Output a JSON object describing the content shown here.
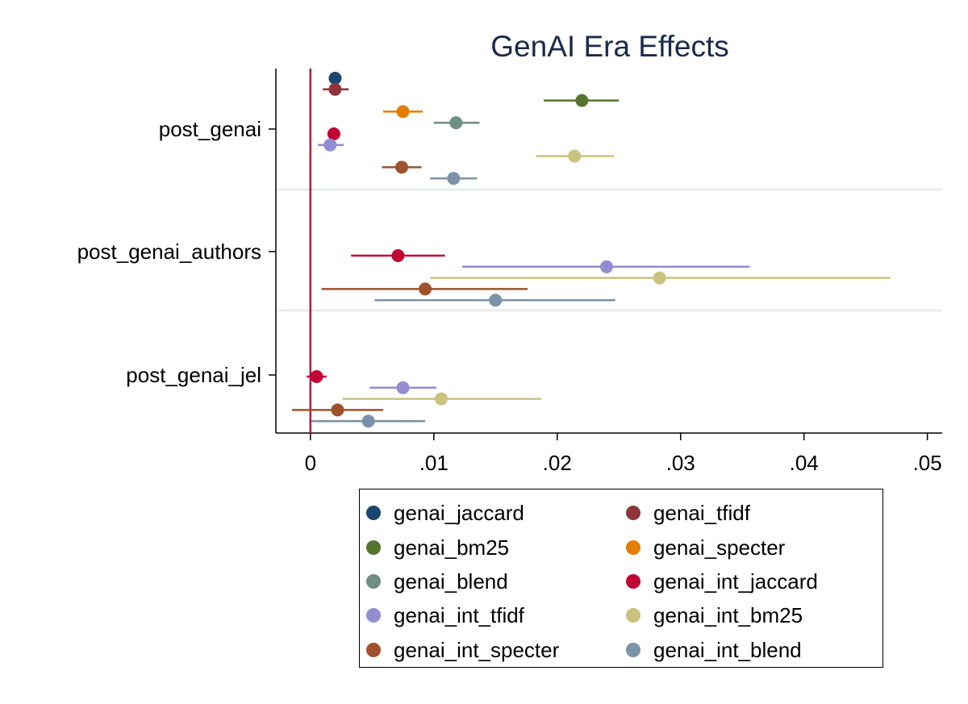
{
  "chart_data": {
    "type": "coefficient_plot",
    "title": "GenAI Era Effects",
    "xlabel": "",
    "ylabel": "",
    "xlim": [
      -0.0028,
      0.0512
    ],
    "x_ticks": [
      0,
      0.01,
      0.02,
      0.03,
      0.04,
      0.05
    ],
    "x_tick_labels": [
      "0",
      ".01",
      ".02",
      ".03",
      ".04",
      ".05"
    ],
    "reference_line_x": 0,
    "reference_line_color": "#c0103a",
    "groups": [
      "post_genai",
      "post_genai_authors",
      "post_genai_jel"
    ],
    "legend_position": "bottom",
    "series": [
      {
        "name": "genai_jaccard",
        "color": "#1a476f",
        "points": [
          {
            "group": "post_genai",
            "estimate": 0.002,
            "ci_low": 0.0016,
            "ci_high": 0.0024
          }
        ]
      },
      {
        "name": "genai_tfidf",
        "color": "#90353b",
        "points": [
          {
            "group": "post_genai",
            "estimate": 0.002,
            "ci_low": 0.001,
            "ci_high": 0.0031
          }
        ]
      },
      {
        "name": "genai_bm25",
        "color": "#55752f",
        "points": [
          {
            "group": "post_genai",
            "estimate": 0.022,
            "ci_low": 0.0189,
            "ci_high": 0.025
          }
        ]
      },
      {
        "name": "genai_specter",
        "color": "#e37e00",
        "points": [
          {
            "group": "post_genai",
            "estimate": 0.0075,
            "ci_low": 0.0059,
            "ci_high": 0.0091
          }
        ]
      },
      {
        "name": "genai_blend",
        "color": "#6e8e84",
        "points": [
          {
            "group": "post_genai",
            "estimate": 0.0118,
            "ci_low": 0.01,
            "ci_high": 0.0137
          }
        ]
      },
      {
        "name": "genai_int_jaccard",
        "color": "#c10534",
        "points": [
          {
            "group": "post_genai",
            "estimate": 0.0019,
            "ci_low": 0.0014,
            "ci_high": 0.0024
          },
          {
            "group": "post_genai_authors",
            "estimate": 0.0071,
            "ci_low": 0.0033,
            "ci_high": 0.0109
          },
          {
            "group": "post_genai_jel",
            "estimate": 0.0005,
            "ci_low": -0.0003,
            "ci_high": 0.0013
          }
        ]
      },
      {
        "name": "genai_int_tfidf",
        "color": "#938dd2",
        "points": [
          {
            "group": "post_genai",
            "estimate": 0.0016,
            "ci_low": 0.0006,
            "ci_high": 0.0027
          },
          {
            "group": "post_genai_authors",
            "estimate": 0.024,
            "ci_low": 0.0123,
            "ci_high": 0.0356
          },
          {
            "group": "post_genai_jel",
            "estimate": 0.0075,
            "ci_low": 0.0048,
            "ci_high": 0.0102
          }
        ]
      },
      {
        "name": "genai_int_bm25",
        "color": "#cac27e",
        "points": [
          {
            "group": "post_genai",
            "estimate": 0.0214,
            "ci_low": 0.0183,
            "ci_high": 0.0246
          },
          {
            "group": "post_genai_authors",
            "estimate": 0.0283,
            "ci_low": 0.0097,
            "ci_high": 0.047
          },
          {
            "group": "post_genai_jel",
            "estimate": 0.0106,
            "ci_low": 0.0026,
            "ci_high": 0.0187
          }
        ]
      },
      {
        "name": "genai_int_specter",
        "color": "#a0522d",
        "points": [
          {
            "group": "post_genai",
            "estimate": 0.0074,
            "ci_low": 0.0058,
            "ci_high": 0.009
          },
          {
            "group": "post_genai_authors",
            "estimate": 0.0093,
            "ci_low": 0.0009,
            "ci_high": 0.0176
          },
          {
            "group": "post_genai_jel",
            "estimate": 0.0022,
            "ci_low": -0.0015,
            "ci_high": 0.0059
          }
        ]
      },
      {
        "name": "genai_int_blend",
        "color": "#7b92a8",
        "points": [
          {
            "group": "post_genai",
            "estimate": 0.0116,
            "ci_low": 0.0097,
            "ci_high": 0.0135
          },
          {
            "group": "post_genai_authors",
            "estimate": 0.015,
            "ci_low": 0.0052,
            "ci_high": 0.0247
          },
          {
            "group": "post_genai_jel",
            "estimate": 0.0047,
            "ci_low": 0.0001,
            "ci_high": 0.0093
          }
        ]
      }
    ]
  }
}
